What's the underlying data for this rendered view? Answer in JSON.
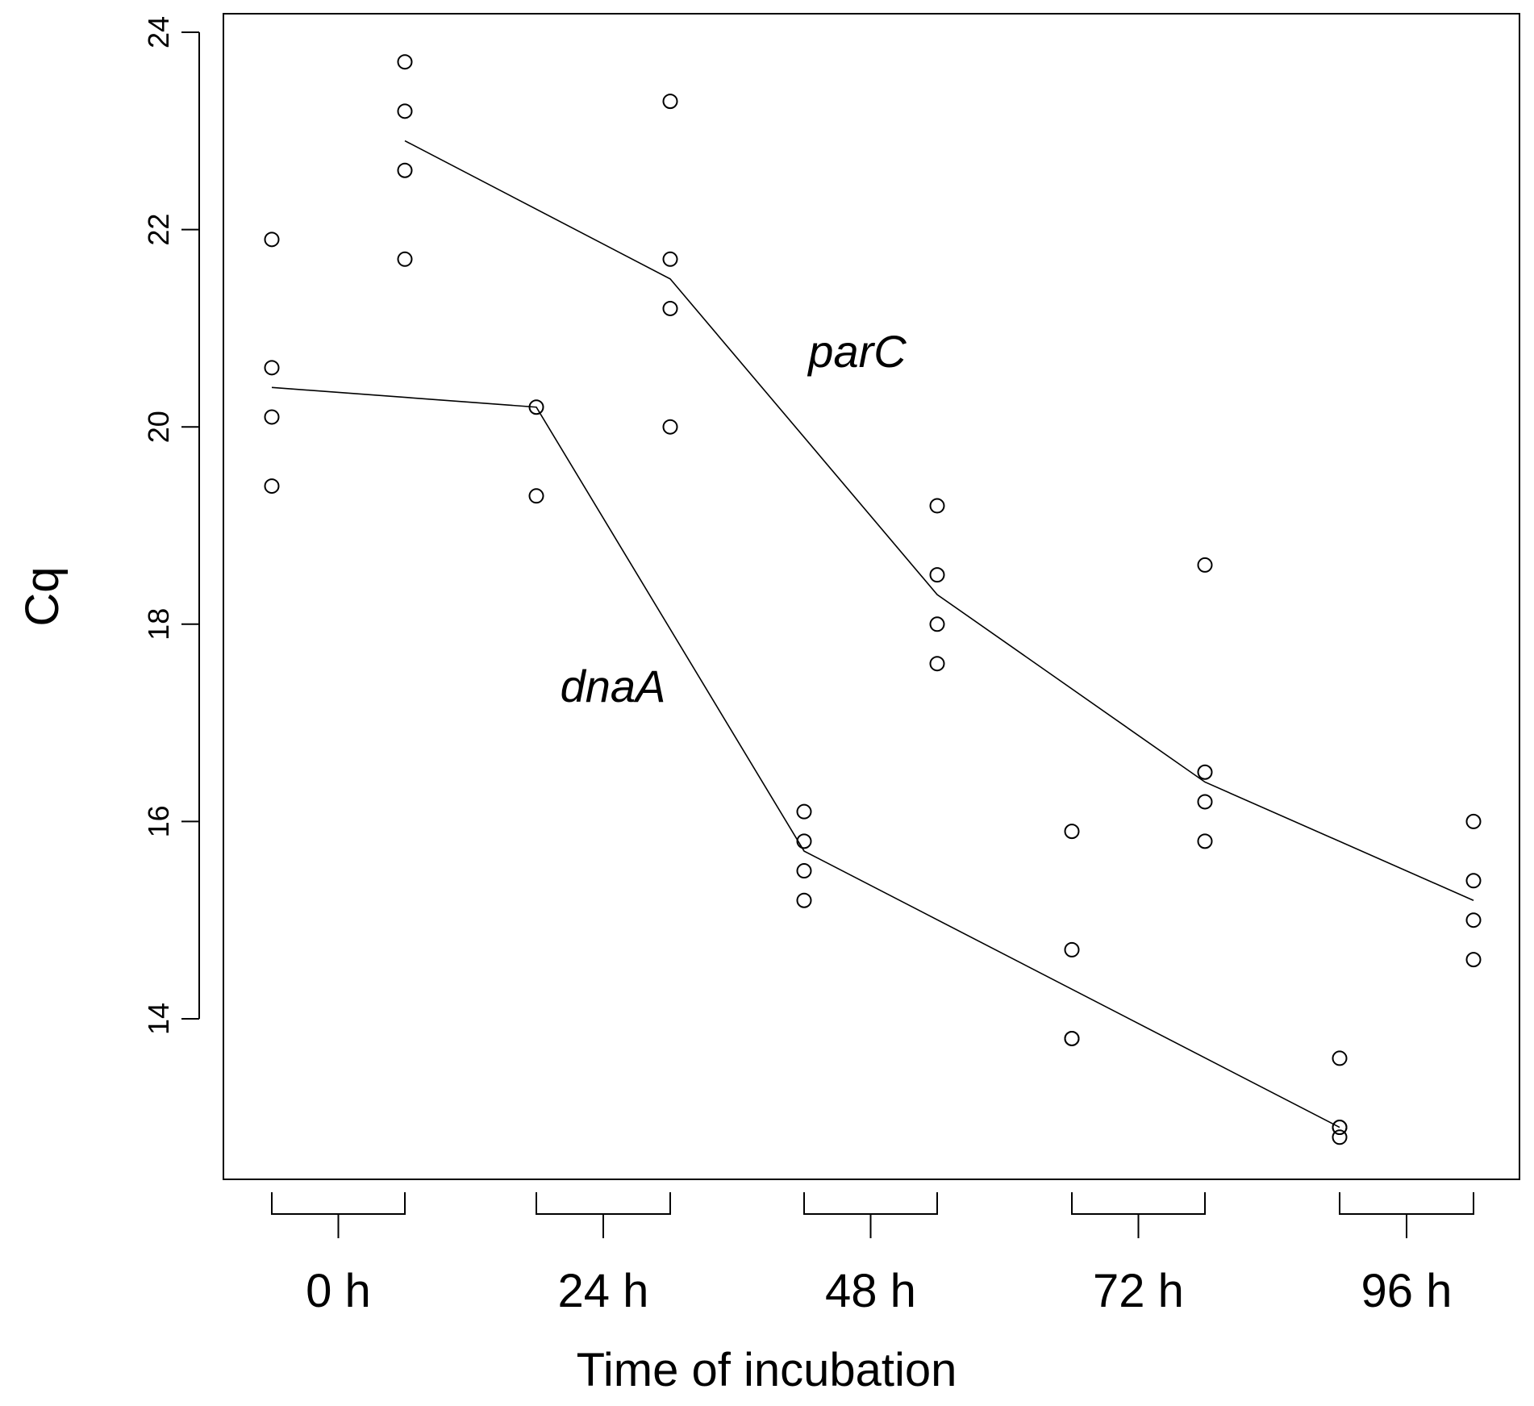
{
  "chart_data": {
    "type": "scatter",
    "title": "",
    "xlabel": "Time of incubation",
    "ylabel": "Cq",
    "ylim": [
      12.3,
      24.2
    ],
    "yticks": [
      14,
      16,
      18,
      20,
      22,
      24
    ],
    "grid": false,
    "legend": "none",
    "groups": [
      "0 h",
      "24 h",
      "48 h",
      "72 h",
      "96 h"
    ],
    "series": [
      {
        "name": "dnaA",
        "points": [
          {
            "group": "0 h",
            "values": [
              21.9,
              20.6,
              20.1,
              19.4
            ]
          },
          {
            "group": "24 h",
            "values": [
              20.2,
              19.3
            ]
          },
          {
            "group": "48 h",
            "values": [
              16.1,
              15.8,
              15.5,
              15.2
            ]
          },
          {
            "group": "72 h",
            "values": [
              15.9,
              14.7,
              13.8,
              13.8
            ]
          },
          {
            "group": "96 h",
            "values": [
              13.6,
              12.9,
              12.9,
              12.8
            ]
          }
        ],
        "trend": [
          20.4,
          20.2,
          15.7,
          14.3,
          12.9
        ]
      },
      {
        "name": "parC",
        "points": [
          {
            "group": "0 h",
            "values": [
              23.7,
              23.2,
              22.6,
              21.7
            ]
          },
          {
            "group": "24 h",
            "values": [
              23.3,
              21.7,
              21.2,
              20.0
            ]
          },
          {
            "group": "48 h",
            "values": [
              19.2,
              18.5,
              18.0,
              17.6
            ]
          },
          {
            "group": "72 h",
            "values": [
              18.6,
              16.5,
              16.2,
              15.8
            ]
          },
          {
            "group": "96 h",
            "values": [
              16.0,
              15.4,
              15.0,
              14.6
            ]
          }
        ],
        "trend": [
          22.9,
          21.5,
          18.3,
          16.4,
          15.2
        ]
      }
    ],
    "annotations": [
      "parC",
      "dnaA"
    ]
  }
}
